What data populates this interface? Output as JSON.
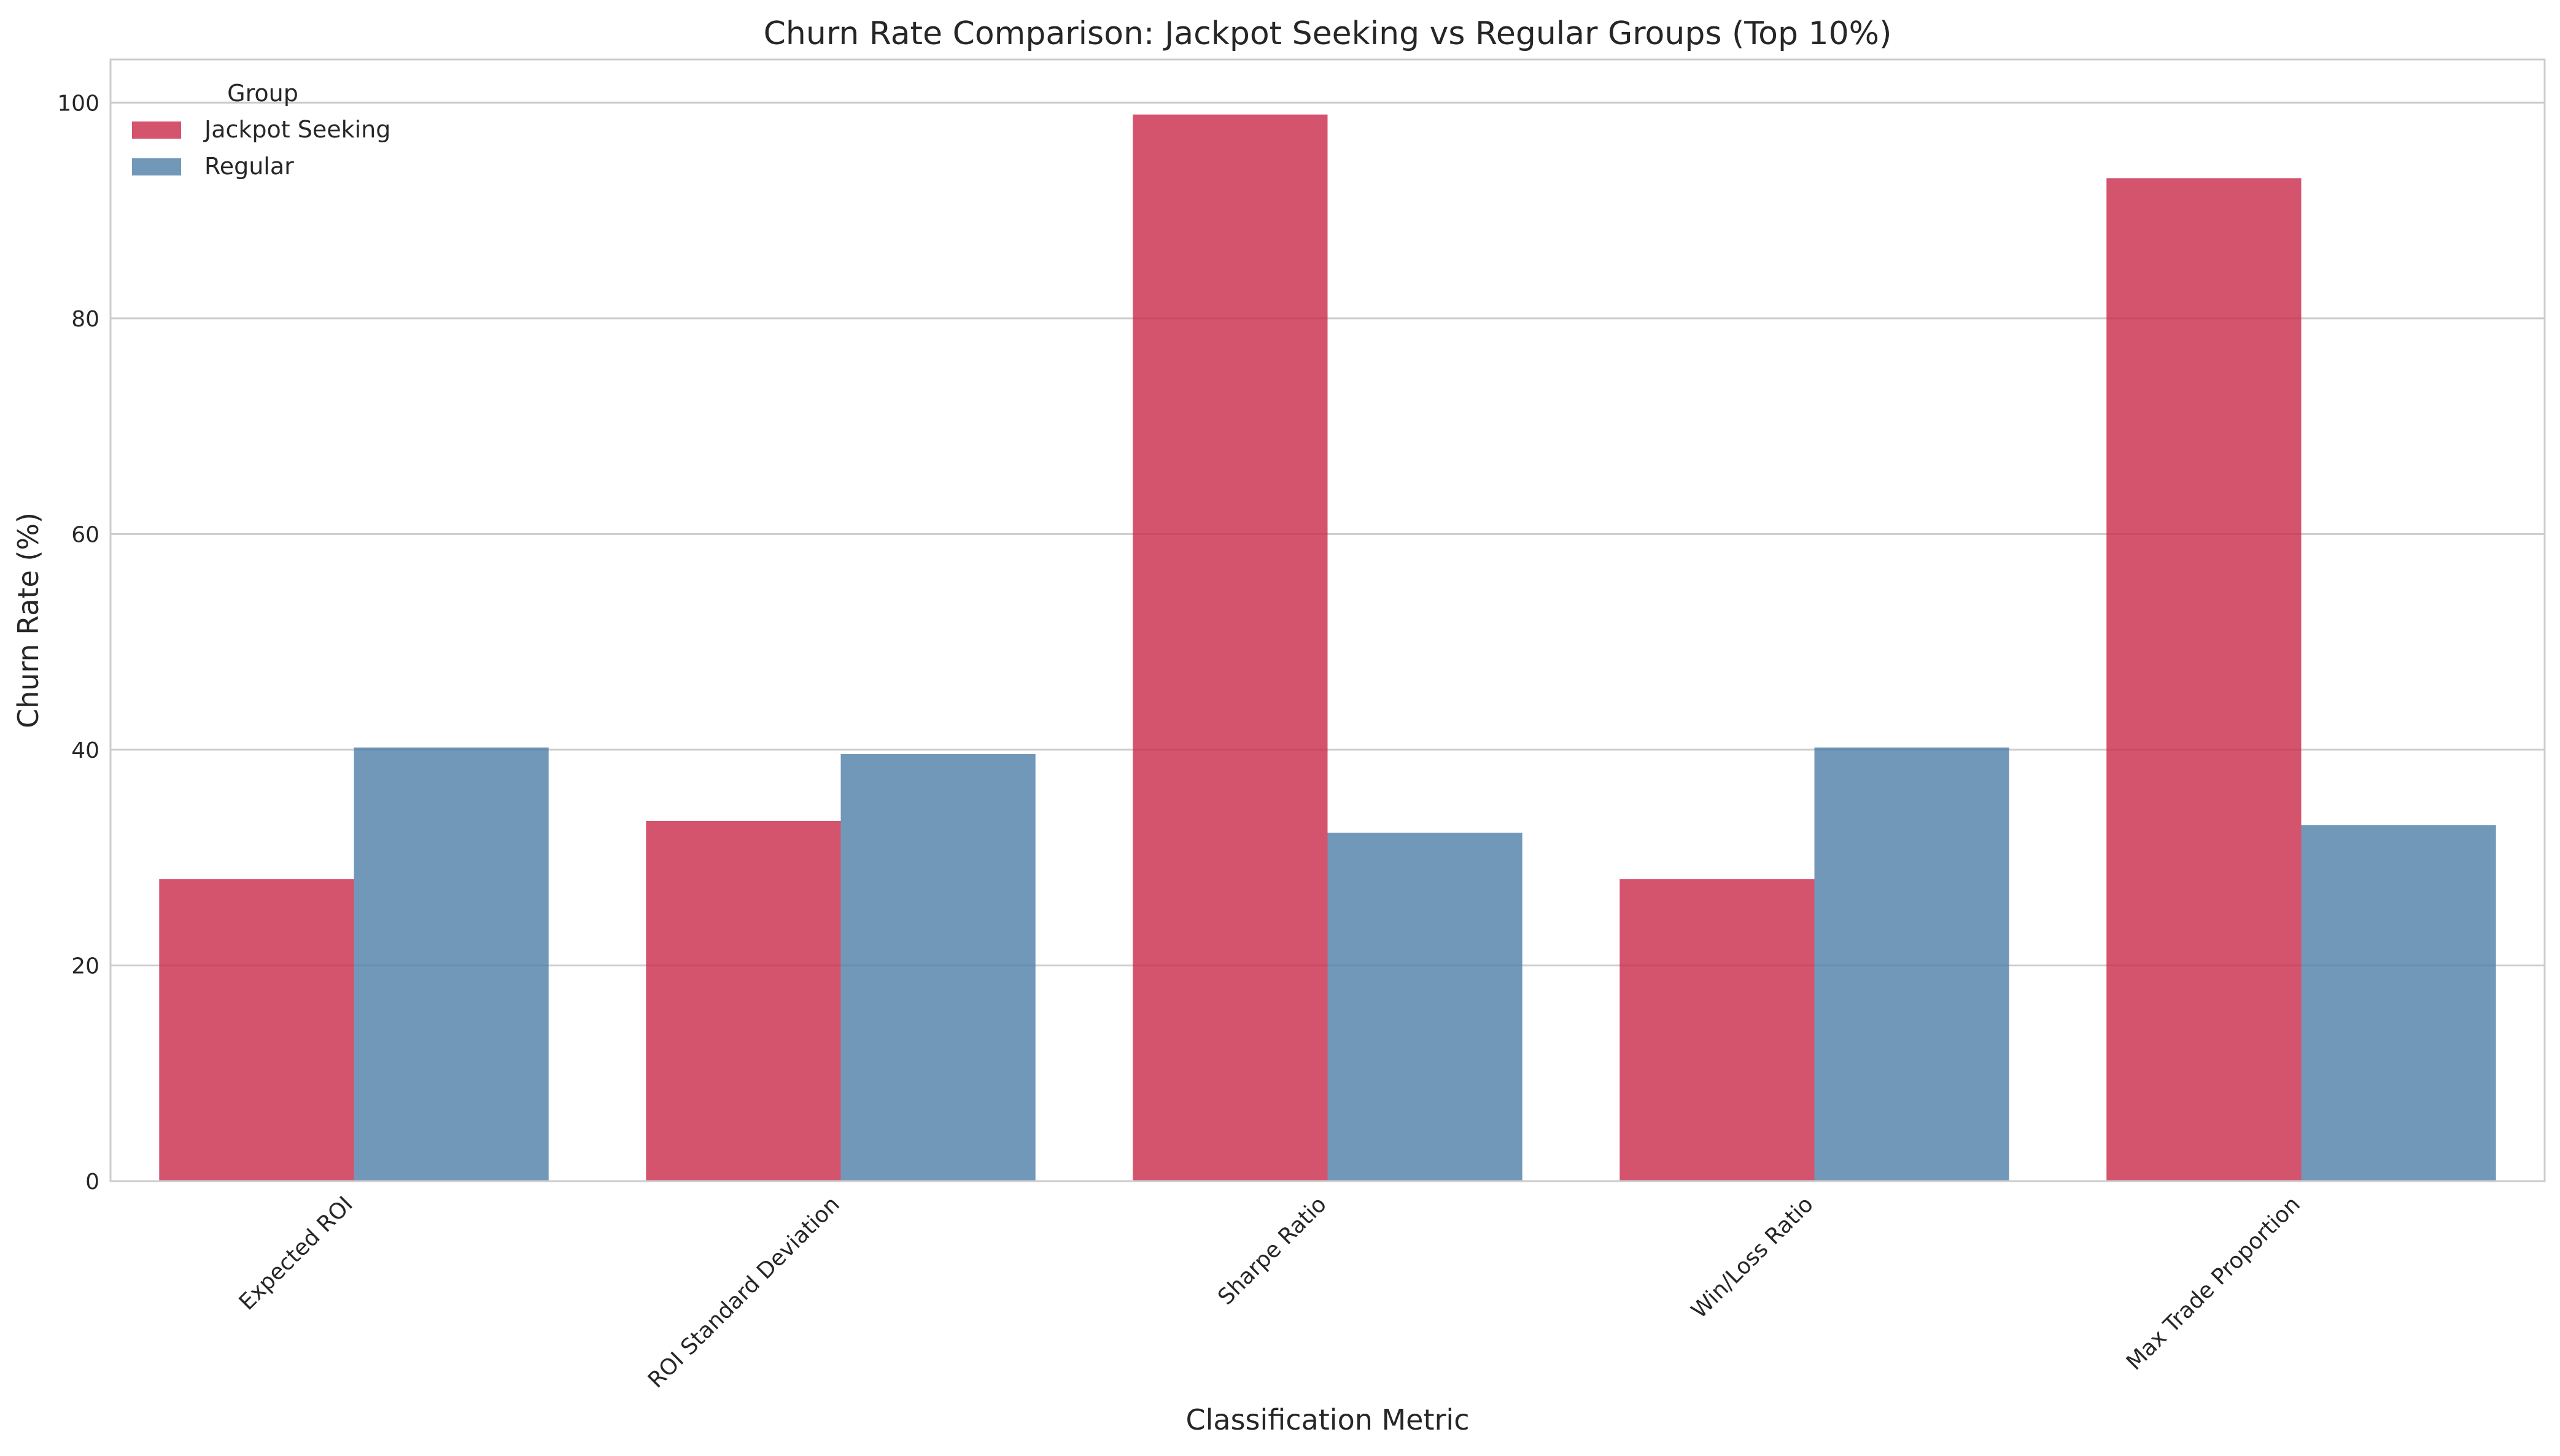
{
  "chart_data": {
    "type": "bar",
    "title": "Churn Rate Comparison: Jackpot Seeking vs Regular Groups (Top 10%)",
    "xlabel": "Classification Metric",
    "ylabel": "Churn Rate (%)",
    "categories": [
      "Expected ROI",
      "ROI Standard Deviation",
      "Sharpe Ratio",
      "Win/Loss Ratio",
      "Max Trade Proportion"
    ],
    "series": [
      {
        "name": "Jackpot Seeking",
        "color": "#c9294a",
        "values": [
          28.0,
          33.4,
          98.9,
          28.0,
          93.0
        ]
      },
      {
        "name": "Regular",
        "color": "#4f7ea8",
        "values": [
          40.2,
          39.6,
          32.3,
          40.2,
          33.0
        ]
      }
    ],
    "ylim": [
      0,
      104
    ],
    "yticks": [
      0,
      20,
      40,
      60,
      80,
      100
    ],
    "grid": true,
    "legend": {
      "title": "Group",
      "position": "top-left"
    }
  }
}
